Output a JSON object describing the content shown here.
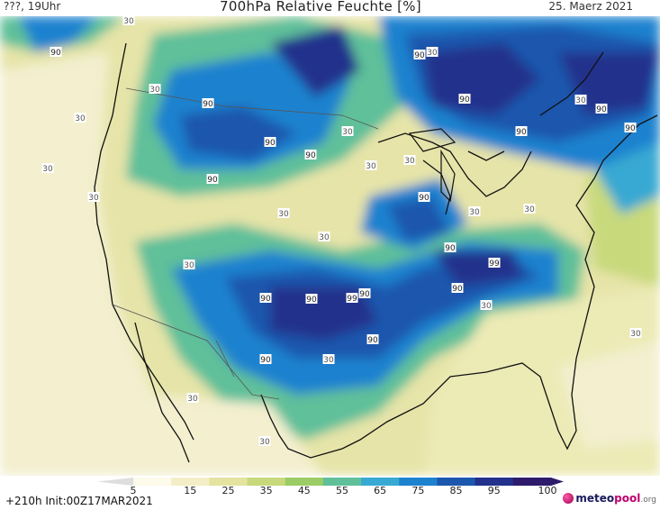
{
  "header": {
    "left_text": "???, 19Uhr",
    "title": "700hPa Relative Feuchte [%]",
    "date": "25. Maerz 2021"
  },
  "map": {
    "labels": [
      {
        "text": "90"
      },
      {
        "text": "30"
      },
      {
        "text": "30"
      },
      {
        "text": "30"
      },
      {
        "text": "90"
      },
      {
        "text": "90"
      },
      {
        "text": "90"
      },
      {
        "text": "30"
      },
      {
        "text": "90"
      },
      {
        "text": "90"
      },
      {
        "text": "90"
      },
      {
        "text": "30"
      },
      {
        "text": "30"
      },
      {
        "text": "30"
      },
      {
        "text": "90"
      },
      {
        "text": "30"
      },
      {
        "text": "30"
      },
      {
        "text": "30"
      },
      {
        "text": "90"
      },
      {
        "text": "30"
      },
      {
        "text": "90"
      },
      {
        "text": "99"
      },
      {
        "text": "30"
      },
      {
        "text": "90"
      },
      {
        "text": "90"
      },
      {
        "text": "90"
      },
      {
        "text": "99"
      },
      {
        "text": "90"
      },
      {
        "text": "30"
      },
      {
        "text": "90"
      },
      {
        "text": "90"
      },
      {
        "text": "30"
      },
      {
        "text": "30"
      },
      {
        "text": "30"
      },
      {
        "text": "30"
      },
      {
        "text": "30"
      },
      {
        "text": "90"
      },
      {
        "text": "90"
      },
      {
        "text": "30"
      },
      {
        "text": "30"
      }
    ]
  },
  "legend": {
    "ticks": [
      "5",
      "15",
      "25",
      "35",
      "45",
      "55",
      "65",
      "75",
      "85",
      "95",
      "100"
    ],
    "colors": [
      "#fdfbe9",
      "#f3eec6",
      "#e4e3a0",
      "#c8d97c",
      "#9ccc66",
      "#5fc09a",
      "#38a9d2",
      "#1f82cf",
      "#1b57ad",
      "#23318c",
      "#2e1b6b"
    ]
  },
  "footer": {
    "run_text": "+210h  Init:00Z17MAR2021",
    "logo_meteo": "meteo",
    "logo_pool": "pool",
    "logo_org": ".org"
  }
}
